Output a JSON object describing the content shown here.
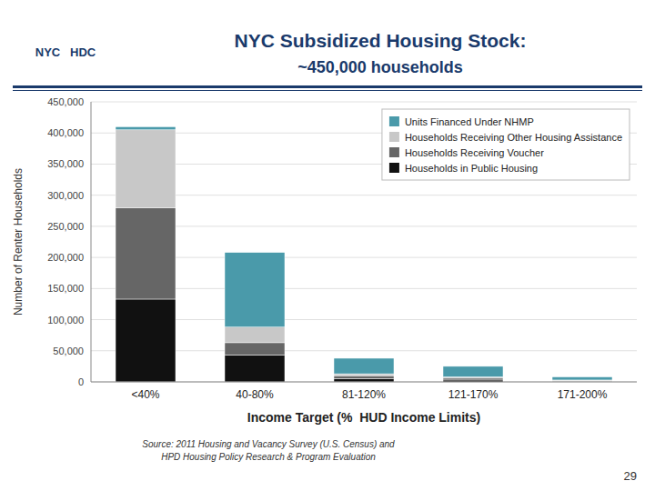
{
  "chart_data": {
    "type": "bar",
    "stacked": true,
    "title": "NYC Subsidized Housing Stock:",
    "subtitle": "~450,000 households",
    "xlabel": "Income Target (%  HUD Income Limits)",
    "ylabel": "Number of Renter Households",
    "categories": [
      "<40%",
      "40-80%",
      "81-120%",
      "121-170%",
      "171-200%"
    ],
    "series": [
      {
        "name": "Households in Public Housing",
        "color": "#111111",
        "values": [
          133000,
          43000,
          5000,
          3000,
          1000
        ]
      },
      {
        "name": "Households Receiving Voucher",
        "color": "#666666",
        "values": [
          147000,
          20000,
          5000,
          3000,
          1000
        ]
      },
      {
        "name": "Households Receiving Other Housing Assistance",
        "color": "#c8c8c8",
        "values": [
          125000,
          25000,
          3000,
          2000,
          1000
        ]
      },
      {
        "name": "Units Financed Under NHMP",
        "color": "#4a9aaa",
        "values": [
          5000,
          120000,
          25000,
          17000,
          5000
        ]
      }
    ],
    "ylim": [
      0,
      450000
    ],
    "yticks": [
      0,
      {
        "value": 50000,
        "label": "50,000"
      },
      {
        "value": 100000,
        "label": "100,000"
      },
      {
        "value": 150000,
        "label": "150,000"
      },
      {
        "value": 200000,
        "label": "200,000"
      },
      {
        "value": 250000,
        "label": "250,000"
      },
      {
        "value": 300000,
        "label": "300,000"
      },
      {
        "value": 350000,
        "label": "350,000"
      },
      {
        "value": 400000,
        "label": "400,000"
      },
      {
        "value": 450000,
        "label": "450,000"
      }
    ],
    "grid": true,
    "legend": "top-right",
    "annotations": [
      "NYC   HDC",
      "Source: 2011 Housing and Vacancy Survey (U.S. Census) and\nHPD Housing Policy Research & Program Evaluation",
      "29"
    ]
  }
}
